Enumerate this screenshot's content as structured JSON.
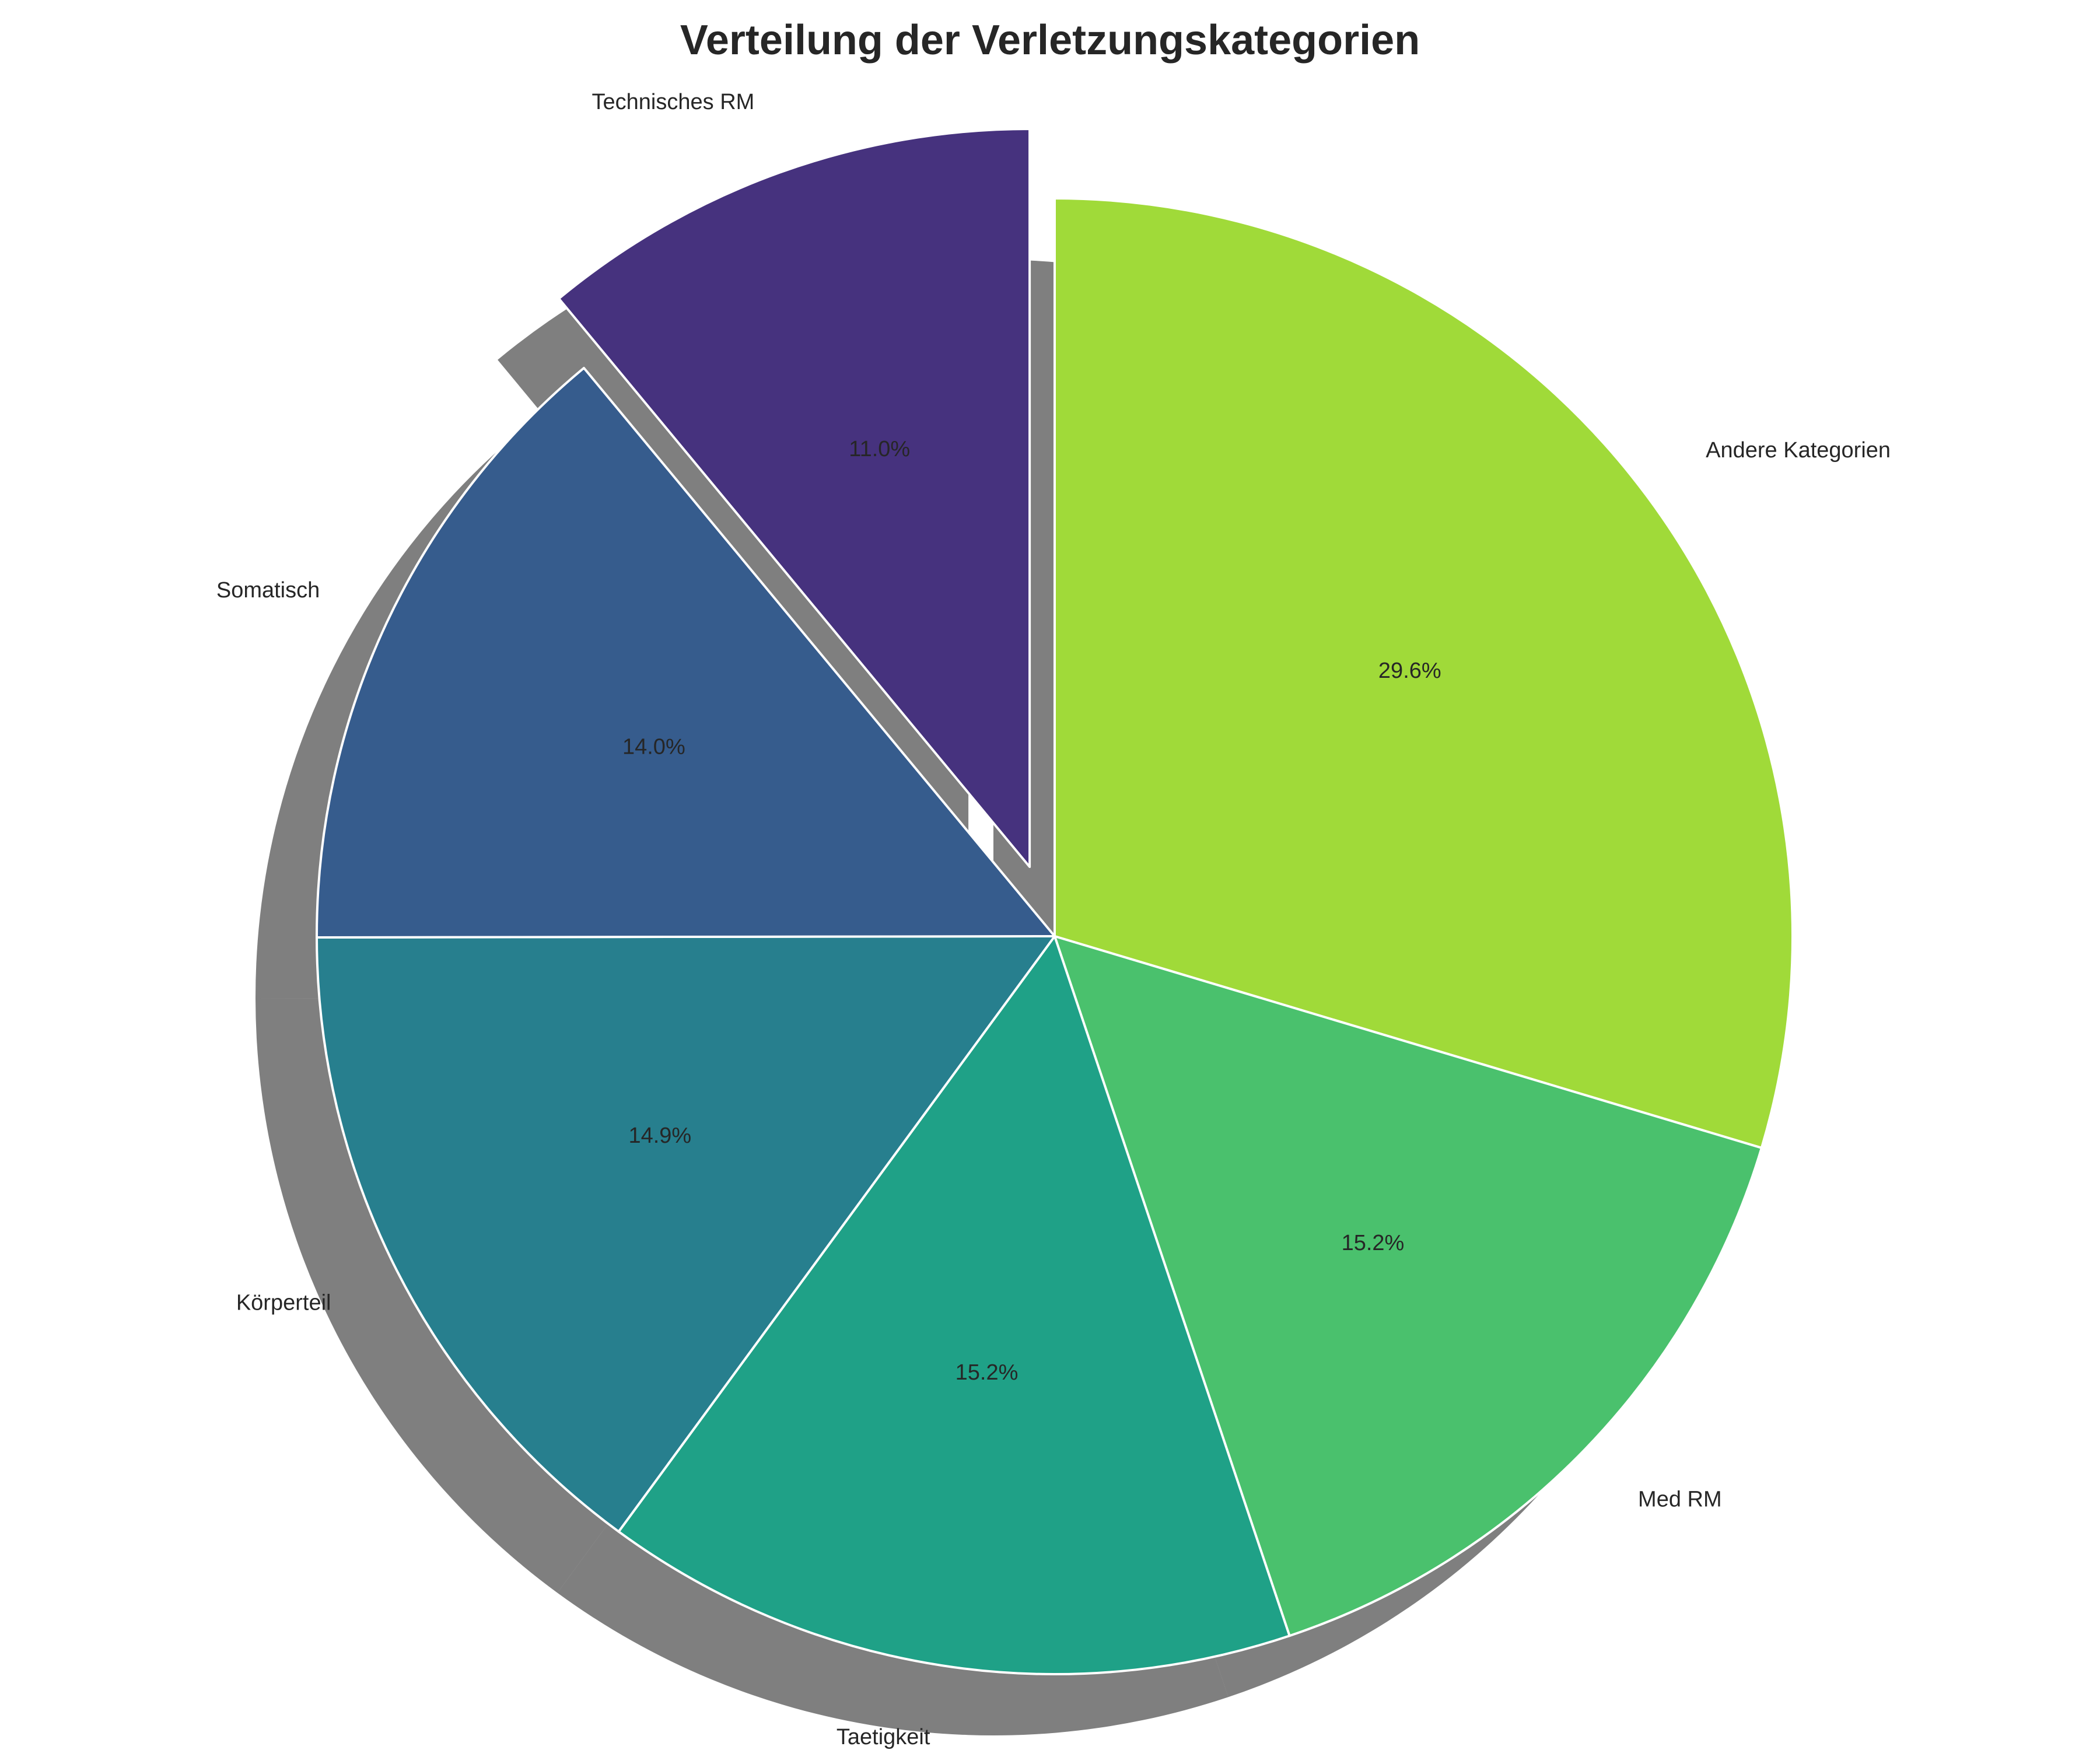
{
  "chart_data": {
    "type": "pie",
    "title": "Verteilung der Verletzungskategorien",
    "slices": [
      {
        "label": "Andere Kategorien",
        "value": 29.6,
        "pct_label": "29.6%",
        "color": "#a0da39",
        "explode": 0
      },
      {
        "label": "Med RM",
        "value": 15.2,
        "pct_label": "15.2%",
        "color": "#4ac16d",
        "explode": 0
      },
      {
        "label": "Taetigkeit",
        "value": 15.2,
        "pct_label": "15.2%",
        "color": "#1fa187",
        "explode": 0
      },
      {
        "label": "Körperteil",
        "value": 14.9,
        "pct_label": "14.9%",
        "color": "#277f8e",
        "explode": 0
      },
      {
        "label": "Somatisch",
        "value": 14.0,
        "pct_label": "14.0%",
        "color": "#365c8d",
        "explode": 0
      },
      {
        "label": "Technisches RM",
        "value": 11.0,
        "pct_label": "11.0%",
        "color": "#46327e",
        "explode": 0.1
      }
    ],
    "start_angle": 90,
    "direction": "clockwise",
    "shadow": true,
    "legend": "none"
  }
}
